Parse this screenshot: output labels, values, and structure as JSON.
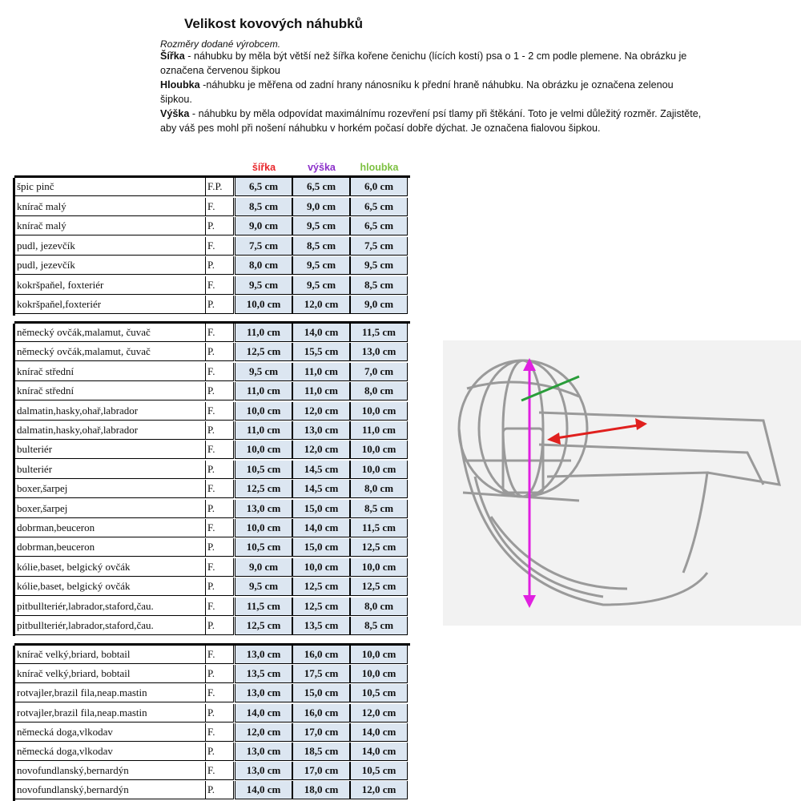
{
  "title": "Velikost kovových náhubků",
  "description": {
    "intro": "Rozměry dodané výrobcem.",
    "paragraphs": [
      {
        "label": "Šířka",
        "text": " - náhubku by měla být větší než šířka kořene čenichu (lících kostí) psa o 1 - 2 cm podle plemene. Na obrázku je označena červenou šipkou"
      },
      {
        "label": "Hloubka",
        "text": " -náhubku je měřena od zadní hrany nánosníku k přední hraně náhubku. Na obrázku je označena zelenou šipkou."
      },
      {
        "label": "Výška",
        "text": " - náhubku by měla odpovídat maximálnímu rozevření psí tlamy při štěkání. Toto je velmi důležitý rozměr. Zajistěte, aby váš pes mohl při nošení náhubku v horkém počasí dobře dýchat. Je označena fialovou šipkou."
      }
    ]
  },
  "table": {
    "columns": [
      "šířka",
      "výška",
      "hloubka"
    ],
    "groups": [
      [
        [
          "špic pinč",
          "F.P.",
          "6,5 cm",
          "6,5 cm",
          "6,0 cm"
        ],
        [
          "knírač malý",
          "F.",
          "8,5 cm",
          "9,0 cm",
          "6,5 cm"
        ],
        [
          "knírač malý",
          "P.",
          "9,0 cm",
          "9,5 cm",
          "6,5 cm"
        ],
        [
          "pudl, jezevčík",
          "F.",
          "7,5 cm",
          "8,5 cm",
          "7,5 cm"
        ],
        [
          "pudl, jezevčík",
          "P.",
          "8,0 cm",
          "9,5 cm",
          "9,5 cm"
        ],
        [
          "kokršpaňel, foxteriér",
          "F.",
          "9,5 cm",
          "9,5 cm",
          "8,5 cm"
        ],
        [
          "kokršpaňel,foxteriér",
          "P.",
          "10,0 cm",
          "12,0 cm",
          "9,0 cm"
        ]
      ],
      [
        [
          "německý ovčák,malamut, čuvač",
          "F.",
          "11,0 cm",
          "14,0 cm",
          "11,5 cm"
        ],
        [
          "německý ovčák,malamut, čuvač",
          "P.",
          "12,5 cm",
          "15,5 cm",
          "13,0 cm"
        ],
        [
          "knírač střední",
          "F.",
          "9,5 cm",
          "11,0 cm",
          "7,0 cm"
        ],
        [
          "knírač střední",
          "P.",
          "11,0 cm",
          "11,0 cm",
          "8,0 cm"
        ],
        [
          "dalmatin,hasky,ohař,labrador",
          "F.",
          "10,0 cm",
          "12,0 cm",
          "10,0 cm"
        ],
        [
          "dalmatin,hasky,ohař,labrador",
          "P.",
          "11,0 cm",
          "13,0 cm",
          "11,0 cm"
        ],
        [
          "bulteriér",
          "F.",
          "10,0 cm",
          "12,0 cm",
          "10,0 cm"
        ],
        [
          "bulteriér",
          "P.",
          "10,5 cm",
          "14,5 cm",
          "10,0 cm"
        ],
        [
          "boxer,šarpej",
          "F.",
          "12,5 cm",
          "14,5 cm",
          "8,0 cm"
        ],
        [
          "boxer,šarpej",
          "P.",
          "13,0 cm",
          "15,0 cm",
          "8,5 cm"
        ],
        [
          "dobrman,beuceron",
          "F.",
          "10,0 cm",
          "14,0 cm",
          "11,5 cm"
        ],
        [
          "dobrman,beuceron",
          "P.",
          "10,5 cm",
          "15,0 cm",
          "12,5 cm"
        ],
        [
          "kólie,baset, belgický ovčák",
          "F.",
          "9,0 cm",
          "10,0 cm",
          "10,0 cm"
        ],
        [
          "kólie,baset, belgický ovčák",
          "P.",
          "9,5 cm",
          "12,5 cm",
          "12,5 cm"
        ],
        [
          "pitbullteriér,labrador,staford,čau.",
          "F.",
          "11,5 cm",
          "12,5 cm",
          "8,0 cm"
        ],
        [
          "pitbullteriér,labrador,staford,čau.",
          "P.",
          "12,5 cm",
          "13,5 cm",
          "8,5 cm"
        ]
      ],
      [
        [
          "knírač velký,briard, bobtail",
          "F.",
          "13,0 cm",
          "16,0 cm",
          "10,0 cm"
        ],
        [
          "knírač velký,briard, bobtail",
          "P.",
          "13,5 cm",
          "17,5 cm",
          "10,0 cm"
        ],
        [
          "rotvajler,brazil fila,neap.mastin",
          "F.",
          "13,0 cm",
          "15,0 cm",
          "10,5 cm"
        ],
        [
          "rotvajler,brazil fila,neap.mastin",
          "P.",
          "14,0 cm",
          "16,0 cm",
          "12,0 cm"
        ],
        [
          "německá doga,vlkodav",
          "F.",
          "12,0 cm",
          "17,0 cm",
          "14,0 cm"
        ],
        [
          "německá doga,vlkodav",
          "P.",
          "13,0 cm",
          "18,5 cm",
          "14,0 cm"
        ],
        [
          "novofundlanský,bernardýn",
          "F.",
          "13,0 cm",
          "17,0 cm",
          "10,5 cm"
        ],
        [
          "novofundlanský,bernardýn",
          "P.",
          "14,0 cm",
          "18,0 cm",
          "12,0 cm"
        ]
      ]
    ]
  }
}
